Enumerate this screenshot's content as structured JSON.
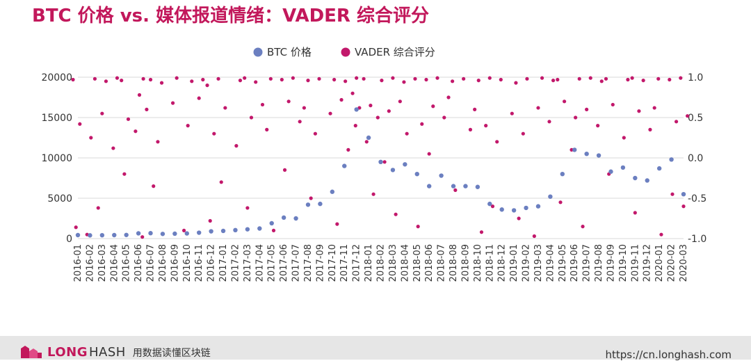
{
  "title": "BTC 价格 vs. 媒体报道情绪：VADER 综合评分",
  "footer": {
    "brand_long": "LONG",
    "brand_hash": "HASH",
    "tagline": "用数据读懂区块链",
    "url": "https://cn.longhash.com"
  },
  "colors": {
    "title": "#c2185b",
    "btc": "#6b7fc0",
    "vader": "#c2186b",
    "grid": "#d9d9d9",
    "axis_text": "#333333"
  },
  "chart_data": {
    "type": "scatter",
    "title": "BTC 价格 vs. 媒体报道情绪：VADER 综合评分",
    "legend_position": "top-center",
    "grid": true,
    "x_ticks": [
      "2016-01",
      "2016-02",
      "2016-03",
      "2016-04",
      "2016-05",
      "2016-06",
      "2016-07",
      "2016-08",
      "2016-09",
      "2016-10",
      "2016-11",
      "2016-12",
      "2017-01",
      "2017-02",
      "2017-03",
      "2017-04",
      "2017-05",
      "2017-06",
      "2017-07",
      "2017-08",
      "2017-09",
      "2017-10",
      "2017-11",
      "2017-12",
      "2018-01",
      "2018-02",
      "2018-03",
      "2018-04",
      "2018-05",
      "2018-06",
      "2018-07",
      "2018-08",
      "2018-09",
      "2018-10",
      "2018-11",
      "2018-12",
      "2019-01",
      "2019-02",
      "2019-03",
      "2019-04",
      "2019-05",
      "2019-06",
      "2019-07",
      "2019-08",
      "2019-09",
      "2019-10",
      "2019-11",
      "2019-12",
      "2020-01",
      "2020-02",
      "2020-03"
    ],
    "y_left": {
      "label": "",
      "range": [
        0,
        20000
      ],
      "ticks": [
        0,
        5000,
        10000,
        15000,
        20000
      ]
    },
    "y_right": {
      "label": "",
      "range": [
        -1.0,
        1.0
      ],
      "ticks": [
        "-1.0",
        "-0.5",
        "0.0",
        "0.5",
        "1.0"
      ]
    },
    "series": [
      {
        "name": "BTC 价格",
        "axis": "left",
        "points": [
          [
            "2016-01",
            430
          ],
          [
            "2016-02",
            400
          ],
          [
            "2016-03",
            415
          ],
          [
            "2016-04",
            430
          ],
          [
            "2016-05",
            450
          ],
          [
            "2016-06",
            650
          ],
          [
            "2016-07",
            670
          ],
          [
            "2016-08",
            580
          ],
          [
            "2016-09",
            605
          ],
          [
            "2016-10",
            640
          ],
          [
            "2016-11",
            730
          ],
          [
            "2016-12",
            900
          ],
          [
            "2017-01",
            950
          ],
          [
            "2017-02",
            1050
          ],
          [
            "2017-03",
            1150
          ],
          [
            "2017-04",
            1250
          ],
          [
            "2017-05",
            1900
          ],
          [
            "2017-06",
            2600
          ],
          [
            "2017-07",
            2500
          ],
          [
            "2017-08",
            4200
          ],
          [
            "2017-09",
            4300
          ],
          [
            "2017-10",
            5800
          ],
          [
            "2017-11",
            9000
          ],
          [
            "2017-12",
            16000
          ],
          [
            "2018-01",
            12500
          ],
          [
            "2018-02",
            9500
          ],
          [
            "2018-03",
            8500
          ],
          [
            "2018-04",
            9200
          ],
          [
            "2018-05",
            8000
          ],
          [
            "2018-06",
            6500
          ],
          [
            "2018-07",
            7800
          ],
          [
            "2018-08",
            6500
          ],
          [
            "2018-09",
            6500
          ],
          [
            "2018-10",
            6400
          ],
          [
            "2018-11",
            4300
          ],
          [
            "2018-12",
            3600
          ],
          [
            "2019-01",
            3500
          ],
          [
            "2019-02",
            3800
          ],
          [
            "2019-03",
            4000
          ],
          [
            "2019-04",
            5200
          ],
          [
            "2019-05",
            8000
          ],
          [
            "2019-06",
            11000
          ],
          [
            "2019-07",
            10500
          ],
          [
            "2019-08",
            10300
          ],
          [
            "2019-09",
            8300
          ],
          [
            "2019-10",
            8800
          ],
          [
            "2019-11",
            7500
          ],
          [
            "2019-12",
            7200
          ],
          [
            "2020-01",
            8700
          ],
          [
            "2020-02",
            9800
          ],
          [
            "2020-03",
            5500
          ]
        ]
      },
      {
        "name": "VADER 综合评分",
        "axis": "right",
        "points": [
          [
            "2016-01",
            0.97
          ],
          [
            "2016-01",
            0.42
          ],
          [
            "2016-01",
            -0.86
          ],
          [
            "2016-02",
            0.98
          ],
          [
            "2016-02",
            0.25
          ],
          [
            "2016-02",
            -0.95
          ],
          [
            "2016-03",
            0.95
          ],
          [
            "2016-03",
            0.55
          ],
          [
            "2016-03",
            -0.62
          ],
          [
            "2016-04",
            0.99
          ],
          [
            "2016-04",
            0.12
          ],
          [
            "2016-05",
            0.96
          ],
          [
            "2016-05",
            0.48
          ],
          [
            "2016-05",
            -0.2
          ],
          [
            "2016-06",
            0.98
          ],
          [
            "2016-06",
            0.78
          ],
          [
            "2016-06",
            0.33
          ],
          [
            "2016-06",
            -0.98
          ],
          [
            "2016-07",
            0.97
          ],
          [
            "2016-07",
            0.6
          ],
          [
            "2016-07",
            -0.35
          ],
          [
            "2016-08",
            0.93
          ],
          [
            "2016-08",
            0.2
          ],
          [
            "2016-09",
            0.99
          ],
          [
            "2016-09",
            0.68
          ],
          [
            "2016-10",
            0.95
          ],
          [
            "2016-10",
            0.4
          ],
          [
            "2016-10",
            -0.9
          ],
          [
            "2016-11",
            0.97
          ],
          [
            "2016-11",
            0.74
          ],
          [
            "2016-12",
            0.9
          ],
          [
            "2016-12",
            0.3
          ],
          [
            "2016-12",
            -0.78
          ],
          [
            "2017-01",
            0.98
          ],
          [
            "2017-01",
            0.62
          ],
          [
            "2017-01",
            -0.3
          ],
          [
            "2017-02",
            0.96
          ],
          [
            "2017-02",
            0.15
          ],
          [
            "2017-03",
            0.99
          ],
          [
            "2017-03",
            0.5
          ],
          [
            "2017-03",
            -0.62
          ],
          [
            "2017-04",
            0.94
          ],
          [
            "2017-04",
            0.66
          ],
          [
            "2017-05",
            0.98
          ],
          [
            "2017-05",
            0.35
          ],
          [
            "2017-05",
            -0.9
          ],
          [
            "2017-06",
            0.97
          ],
          [
            "2017-06",
            0.7
          ],
          [
            "2017-06",
            -0.15
          ],
          [
            "2017-07",
            0.99
          ],
          [
            "2017-07",
            0.45
          ],
          [
            "2017-08",
            0.96
          ],
          [
            "2017-08",
            0.62
          ],
          [
            "2017-08",
            -0.5
          ],
          [
            "2017-09",
            0.98
          ],
          [
            "2017-09",
            0.3
          ],
          [
            "2017-10",
            0.97
          ],
          [
            "2017-10",
            0.55
          ],
          [
            "2017-10",
            -0.82
          ],
          [
            "2017-11",
            0.95
          ],
          [
            "2017-11",
            0.72
          ],
          [
            "2017-11",
            0.1
          ],
          [
            "2017-12",
            0.99
          ],
          [
            "2017-12",
            0.8
          ],
          [
            "2017-12",
            0.62
          ],
          [
            "2017-12",
            0.4
          ],
          [
            "2018-01",
            0.98
          ],
          [
            "2018-01",
            0.65
          ],
          [
            "2018-01",
            0.2
          ],
          [
            "2018-01",
            -0.45
          ],
          [
            "2018-02",
            0.96
          ],
          [
            "2018-02",
            0.5
          ],
          [
            "2018-02",
            -0.05
          ],
          [
            "2018-03",
            0.99
          ],
          [
            "2018-03",
            0.58
          ],
          [
            "2018-03",
            -0.7
          ],
          [
            "2018-04",
            0.94
          ],
          [
            "2018-04",
            0.7
          ],
          [
            "2018-04",
            0.3
          ],
          [
            "2018-05",
            0.98
          ],
          [
            "2018-05",
            0.42
          ],
          [
            "2018-05",
            -0.85
          ],
          [
            "2018-06",
            0.97
          ],
          [
            "2018-06",
            0.64
          ],
          [
            "2018-06",
            0.05
          ],
          [
            "2018-07",
            0.99
          ],
          [
            "2018-07",
            0.5
          ],
          [
            "2018-08",
            0.95
          ],
          [
            "2018-08",
            0.75
          ],
          [
            "2018-08",
            -0.4
          ],
          [
            "2018-09",
            0.98
          ],
          [
            "2018-09",
            0.35
          ],
          [
            "2018-10",
            0.96
          ],
          [
            "2018-10",
            0.6
          ],
          [
            "2018-10",
            -0.92
          ],
          [
            "2018-11",
            0.99
          ],
          [
            "2018-11",
            0.4
          ],
          [
            "2018-11",
            -0.6
          ],
          [
            "2018-12",
            0.97
          ],
          [
            "2018-12",
            0.2
          ],
          [
            "2019-01",
            0.93
          ],
          [
            "2019-01",
            0.55
          ],
          [
            "2019-01",
            -0.75
          ],
          [
            "2019-02",
            0.98
          ],
          [
            "2019-02",
            0.3
          ],
          [
            "2019-03",
            0.99
          ],
          [
            "2019-03",
            0.62
          ],
          [
            "2019-03",
            -0.97
          ],
          [
            "2019-04",
            0.96
          ],
          [
            "2019-04",
            0.45
          ],
          [
            "2019-05",
            0.97
          ],
          [
            "2019-05",
            0.7
          ],
          [
            "2019-05",
            -0.55
          ],
          [
            "2019-06",
            0.98
          ],
          [
            "2019-06",
            0.5
          ],
          [
            "2019-06",
            0.1
          ],
          [
            "2019-07",
            0.99
          ],
          [
            "2019-07",
            0.6
          ],
          [
            "2019-07",
            -0.85
          ],
          [
            "2019-08",
            0.95
          ],
          [
            "2019-08",
            0.4
          ],
          [
            "2019-09",
            0.98
          ],
          [
            "2019-09",
            0.66
          ],
          [
            "2019-09",
            -0.2
          ],
          [
            "2019-10",
            0.97
          ],
          [
            "2019-10",
            0.25
          ],
          [
            "2019-11",
            0.99
          ],
          [
            "2019-11",
            0.58
          ],
          [
            "2019-11",
            -0.68
          ],
          [
            "2019-12",
            0.96
          ],
          [
            "2019-12",
            0.35
          ],
          [
            "2020-01",
            0.98
          ],
          [
            "2020-01",
            0.62
          ],
          [
            "2020-01",
            -0.95
          ],
          [
            "2020-02",
            0.97
          ],
          [
            "2020-02",
            0.45
          ],
          [
            "2020-02",
            -0.45
          ],
          [
            "2020-03",
            0.99
          ],
          [
            "2020-03",
            0.52
          ],
          [
            "2020-03",
            -0.6
          ]
        ]
      }
    ]
  }
}
